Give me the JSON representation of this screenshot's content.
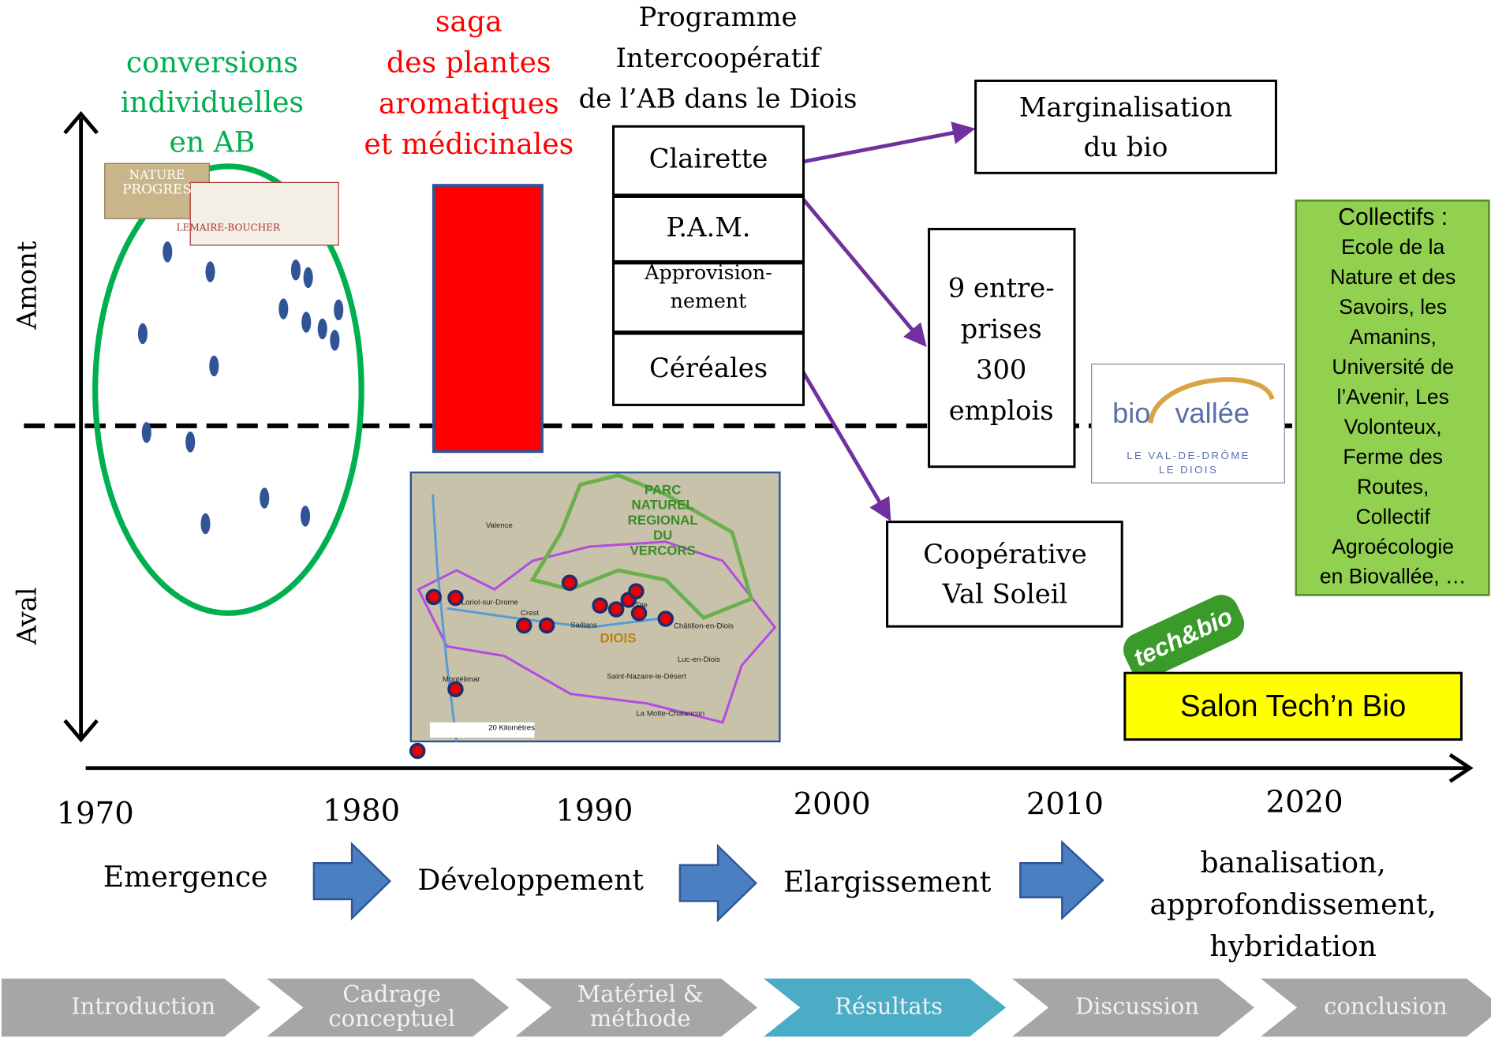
{
  "axes": {
    "upper": "Amont",
    "lower": "Aval",
    "years": [
      "1970",
      "1980",
      "1990",
      "2000",
      "2010",
      "2020"
    ]
  },
  "conversions": {
    "lines": [
      "conversions",
      "individuelles",
      "en AB"
    ],
    "logos": [
      "NATURE",
      "PROGRES",
      "LEMAIRE-BOUCHER"
    ]
  },
  "saga": {
    "lines": [
      "saga",
      "des plantes",
      "aromatiques",
      "et médicinales"
    ]
  },
  "programme": {
    "title": [
      "Programme",
      "Intercoopératif",
      "de l’AB dans le Diois"
    ],
    "branches": [
      {
        "lines": [
          "Clairette"
        ]
      },
      {
        "lines": [
          "P.A.M."
        ]
      },
      {
        "lines": [
          "Approvision-",
          "nement"
        ]
      },
      {
        "lines": [
          "Céréales"
        ]
      }
    ]
  },
  "outcomes": {
    "marginalisation": [
      "Marginalisation",
      "du bio"
    ],
    "entreprises": [
      "9 entre-",
      "prises",
      "300",
      "emplois"
    ],
    "cooperative": [
      "Coopérative",
      "Val Soleil"
    ]
  },
  "map": {
    "park": [
      "PARC",
      "NATUREL",
      "REGIONAL",
      "DU",
      "VERCORS"
    ],
    "region": "DIOIS",
    "towns": [
      "Valence",
      "Crest",
      "Die",
      "Montélimar",
      "Loriol-sur-Drome",
      "Saillans",
      "Luc-en-Diois",
      "Châtillon-en-Diois",
      "Saint-Nazaire-le-Désert",
      "La Motte-Chalancon"
    ],
    "scale": "20 Kilomètres"
  },
  "biovallee": {
    "brand": [
      "bio",
      "vallée"
    ],
    "tagline": [
      "LE VAL-DE-DRÔME",
      "LE DIOIS"
    ]
  },
  "collectifs": {
    "lines": [
      "Collectifs :",
      "Ecole de la",
      "Nature et des",
      "Savoirs, les",
      "Amanins,",
      "Université de",
      "l’Avenir, Les",
      "Volonteux,",
      "Ferme des",
      "Routes,",
      "Collectif",
      "Agroécologie",
      "en Biovallée, …"
    ]
  },
  "techbio": {
    "logo": "tech&bio",
    "salon": "Salon Tech’n Bio"
  },
  "phases": [
    {
      "lines": [
        "Emergence"
      ]
    },
    {
      "lines": [
        "Développement"
      ]
    },
    {
      "lines": [
        "Elargissement"
      ]
    },
    {
      "lines": [
        "banalisation,",
        "approfondissement,",
        "hybridation"
      ]
    }
  ],
  "nav": {
    "tabs": [
      {
        "lines": [
          "Introduction"
        ]
      },
      {
        "lines": [
          "Cadrage",
          "conceptuel"
        ]
      },
      {
        "lines": [
          "Matériel &",
          "méthode"
        ]
      },
      {
        "lines": [
          "Résultats"
        ]
      },
      {
        "lines": [
          "Discussion"
        ]
      },
      {
        "lines": [
          "conclusion"
        ]
      }
    ],
    "active": 3
  }
}
